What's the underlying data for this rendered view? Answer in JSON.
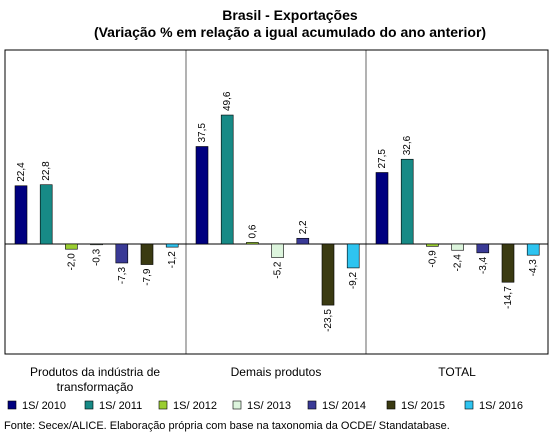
{
  "chart_data": {
    "type": "bar",
    "title": "Brasil - Exportações",
    "subtitle": "(Variação % em relação a igual acumulado do ano anterior)",
    "categories": [
      "Produtos da indústria de transformação",
      "Demais produtos",
      "TOTAL"
    ],
    "category_lines": [
      [
        "Produtos da indústria de",
        "transformação"
      ],
      [
        "Demais produtos"
      ],
      [
        "TOTAL"
      ]
    ],
    "series": [
      {
        "name": "1S/ 2010",
        "color": "#00007F",
        "values": [
          22.4,
          37.5,
          27.5
        ],
        "labels": [
          "22,4",
          "37,5",
          "27,5"
        ]
      },
      {
        "name": "1S/ 2011",
        "color": "#178A86",
        "values": [
          22.8,
          49.6,
          32.6
        ],
        "labels": [
          "22,8",
          "49,6",
          "32,6"
        ]
      },
      {
        "name": "1S/ 2012",
        "color": "#9ACD32",
        "values": [
          -2.0,
          0.6,
          -0.9
        ],
        "labels": [
          "-2,0",
          "0,6",
          "-0,9"
        ]
      },
      {
        "name": "1S/ 2013",
        "color": "#DDF5DD",
        "values": [
          -0.3,
          -5.2,
          -2.4
        ],
        "labels": [
          "-0,3",
          "-5,2",
          "-2,4"
        ]
      },
      {
        "name": "1S/ 2014",
        "color": "#3A3A96",
        "values": [
          -7.3,
          2.2,
          -3.4
        ],
        "labels": [
          "-7,3",
          "2,2",
          "-3,4"
        ]
      },
      {
        "name": "1S/ 2015",
        "color": "#3A3A12",
        "values": [
          -7.9,
          -23.5,
          -14.7
        ],
        "labels": [
          "-7,9",
          "-23,5",
          "-14,7"
        ]
      },
      {
        "name": "1S/ 2016",
        "color": "#2EC4F0",
        "values": [
          -1.2,
          -9.2,
          -4.3
        ],
        "labels": [
          "-1,2",
          "-9,2",
          "-4,3"
        ]
      }
    ],
    "ylim": [
      -30,
      60
    ],
    "grid": false,
    "legend_position": "bottom"
  },
  "source_note": "Fonte: Secex/ALICE. Elaboração própria com base na taxonomia da OCDE/ Standatabase."
}
